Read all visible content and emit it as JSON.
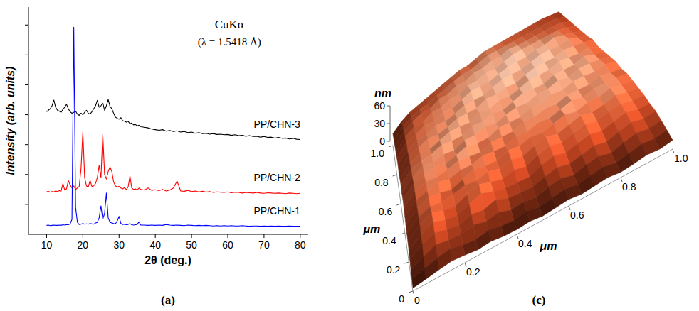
{
  "chart_data": [
    {
      "type": "line",
      "panel": "(a)",
      "x_label": "2θ (deg.)",
      "y_label": "Intensity (arb. units)",
      "annotations": [
        "CuKα",
        "(λ = 1.5418 Å)"
      ],
      "x": [
        10,
        10.5,
        11,
        11.5,
        12,
        12.5,
        13,
        13.5,
        14,
        14.5,
        15,
        15.5,
        16,
        16.5,
        17,
        17.5,
        18,
        18.5,
        19,
        19.5,
        20,
        20.5,
        21,
        21.5,
        22,
        22.5,
        23,
        23.5,
        24,
        24.5,
        25,
        25.5,
        26,
        26.5,
        27,
        27.5,
        28,
        28.5,
        29,
        29.5,
        30,
        30.5,
        31,
        31.5,
        32,
        32.5,
        33,
        33.5,
        34,
        34.5,
        35,
        35.5,
        36,
        37,
        38,
        39,
        40,
        41,
        42,
        43,
        44,
        45,
        46,
        47,
        48,
        49,
        50,
        51,
        52,
        53,
        54,
        55,
        56,
        57,
        58,
        59,
        60,
        61,
        62,
        63,
        64,
        65,
        66,
        67,
        68,
        69,
        70,
        71,
        72,
        73,
        74,
        75,
        76,
        77,
        78,
        79,
        80
      ],
      "series": [
        {
          "name": "PP/CHN-3",
          "color": "#000000",
          "values": [
            4.1,
            4.15,
            4.2,
            4.3,
            4.49,
            4.25,
            4.15,
            4.12,
            4.08,
            4.18,
            4.25,
            4.35,
            4.2,
            4.1,
            4.05,
            4.08,
            4.12,
            4.02,
            3.98,
            4.05,
            4.0,
            4.08,
            4.15,
            4.05,
            4.02,
            4.1,
            4.2,
            4.3,
            4.48,
            4.25,
            4.3,
            4.4,
            4.15,
            4.3,
            4.51,
            4.28,
            4.2,
            4.05,
            3.92,
            3.88,
            3.85,
            3.9,
            3.8,
            3.78,
            3.75,
            3.78,
            3.7,
            3.72,
            3.66,
            3.68,
            3.62,
            3.65,
            3.6,
            3.58,
            3.56,
            3.52,
            3.5,
            3.48,
            3.5,
            3.45,
            3.47,
            3.44,
            3.46,
            3.42,
            3.44,
            3.4,
            3.42,
            3.38,
            3.4,
            3.37,
            3.38,
            3.35,
            3.37,
            3.34,
            3.35,
            3.33,
            3.34,
            3.31,
            3.33,
            3.3,
            3.31,
            3.28,
            3.3,
            3.27,
            3.28,
            3.25,
            3.27,
            3.24,
            3.25,
            3.22,
            3.24,
            3.21,
            3.22,
            3.19,
            3.21,
            3.18,
            3.17
          ]
        },
        {
          "name": "PP/CHN-2",
          "color": "#ff0000",
          "values": [
            1.42,
            1.44,
            1.41,
            1.43,
            1.42,
            1.45,
            1.43,
            1.46,
            1.44,
            1.7,
            1.48,
            1.52,
            1.8,
            1.65,
            1.55,
            1.62,
            1.5,
            1.55,
            1.6,
            2.2,
            3.42,
            1.9,
            1.62,
            1.58,
            1.8,
            1.6,
            1.62,
            1.7,
            1.9,
            2.3,
            1.9,
            3.35,
            2.0,
            1.85,
            2.1,
            2.25,
            2.1,
            1.75,
            1.62,
            1.58,
            1.6,
            1.55,
            1.52,
            1.56,
            1.5,
            1.58,
            1.95,
            1.55,
            1.5,
            1.52,
            1.48,
            1.55,
            1.5,
            1.48,
            1.55,
            1.47,
            1.49,
            1.46,
            1.5,
            1.45,
            1.48,
            1.55,
            1.78,
            1.45,
            1.44,
            1.47,
            1.43,
            1.45,
            1.42,
            1.44,
            1.41,
            1.43,
            1.4,
            1.42,
            1.41,
            1.4,
            1.42,
            1.39,
            1.41,
            1.4,
            1.38,
            1.4,
            1.39,
            1.38,
            1.4,
            1.38,
            1.37,
            1.39,
            1.38,
            1.37,
            1.38,
            1.37,
            1.36,
            1.38,
            1.37,
            1.36,
            1.37
          ]
        },
        {
          "name": "PP/CHN-1",
          "color": "#0000ff",
          "values": [
            0.3,
            0.31,
            0.29,
            0.3,
            0.31,
            0.3,
            0.3,
            0.31,
            0.3,
            0.32,
            0.31,
            0.33,
            0.32,
            0.35,
            0.5,
            6.93,
            0.9,
            0.4,
            0.33,
            0.34,
            0.36,
            0.34,
            0.35,
            0.34,
            0.36,
            0.35,
            0.34,
            0.38,
            0.4,
            0.55,
            0.95,
            0.5,
            0.7,
            1.38,
            0.55,
            0.4,
            0.38,
            0.36,
            0.35,
            0.45,
            0.6,
            0.36,
            0.33,
            0.34,
            0.32,
            0.33,
            0.36,
            0.32,
            0.31,
            0.32,
            0.33,
            0.42,
            0.31,
            0.31,
            0.3,
            0.31,
            0.3,
            0.31,
            0.3,
            0.33,
            0.31,
            0.3,
            0.31,
            0.3,
            0.29,
            0.31,
            0.3,
            0.29,
            0.3,
            0.29,
            0.3,
            0.29,
            0.28,
            0.29,
            0.28,
            0.29,
            0.28,
            0.29,
            0.28,
            0.28,
            0.29,
            0.28,
            0.27,
            0.28,
            0.28,
            0.27,
            0.28,
            0.27,
            0.28,
            0.27,
            0.28,
            0.27,
            0.27,
            0.28,
            0.27,
            0.27,
            0.27
          ]
        }
      ],
      "xlim": [
        5,
        82
      ],
      "xticks": [
        10,
        20,
        30,
        40,
        50,
        60,
        70,
        80
      ],
      "ylim": [
        0,
        7.6
      ],
      "yticks": [
        1,
        2,
        3,
        4,
        5,
        6,
        7
      ],
      "tick_labels": "x"
    },
    {
      "type": "surface",
      "panel": "(c)",
      "x_label": "μm",
      "y_label": "μm",
      "z_label": "nm",
      "x": [
        0,
        0.05,
        0.1,
        0.15,
        0.2,
        0.25,
        0.3,
        0.35,
        0.4,
        0.45,
        0.5,
        0.55,
        0.6,
        0.65,
        0.7,
        0.75,
        0.8,
        0.85,
        0.9,
        0.95,
        1
      ],
      "y": [
        0,
        0.05,
        0.1,
        0.15,
        0.2,
        0.25,
        0.3,
        0.35,
        0.4,
        0.45,
        0.5,
        0.55,
        0.6,
        0.65,
        0.7,
        0.75,
        0.8,
        0.85,
        0.9,
        0.95,
        1
      ],
      "z": [
        [
          5,
          8,
          12,
          15,
          13,
          10,
          12,
          9,
          8,
          10,
          7,
          9,
          11,
          8,
          10,
          12,
          9,
          11,
          14,
          12,
          15
        ],
        [
          8,
          14,
          20,
          24,
          18,
          15,
          19,
          14,
          12,
          16,
          11,
          14,
          17,
          13,
          16,
          19,
          14,
          18,
          22,
          19,
          22
        ],
        [
          12,
          22,
          30,
          26,
          24,
          28,
          22,
          26,
          18,
          20,
          16,
          22,
          24,
          18,
          24,
          26,
          20,
          26,
          30,
          26,
          28
        ],
        [
          16,
          30,
          38,
          32,
          28,
          34,
          30,
          36,
          26,
          24,
          22,
          28,
          32,
          26,
          30,
          34,
          28,
          34,
          38,
          32,
          34
        ],
        [
          20,
          34,
          44,
          36,
          32,
          40,
          46,
          38,
          32,
          30,
          28,
          36,
          40,
          34,
          38,
          42,
          36,
          40,
          44,
          38,
          36
        ],
        [
          22,
          38,
          48,
          40,
          36,
          44,
          50,
          42,
          36,
          40,
          34,
          42,
          46,
          40,
          44,
          48,
          42,
          46,
          48,
          42,
          40
        ],
        [
          24,
          40,
          46,
          42,
          44,
          48,
          44,
          48,
          42,
          46,
          40,
          46,
          50,
          44,
          48,
          52,
          46,
          48,
          52,
          46,
          42
        ],
        [
          26,
          42,
          50,
          46,
          40,
          46,
          52,
          46,
          44,
          50,
          46,
          50,
          46,
          50,
          54,
          48,
          52,
          50,
          54,
          48,
          44
        ],
        [
          28,
          44,
          48,
          52,
          46,
          50,
          48,
          52,
          48,
          46,
          52,
          48,
          52,
          48,
          52,
          56,
          50,
          54,
          52,
          50,
          46
        ],
        [
          30,
          46,
          52,
          48,
          50,
          54,
          50,
          46,
          52,
          50,
          48,
          54,
          50,
          54,
          50,
          54,
          52,
          50,
          54,
          48,
          44
        ],
        [
          32,
          48,
          50,
          54,
          48,
          52,
          56,
          50,
          48,
          54,
          52,
          50,
          56,
          52,
          56,
          52,
          56,
          54,
          50,
          52,
          46
        ],
        [
          30,
          46,
          54,
          50,
          52,
          48,
          54,
          52,
          56,
          50,
          54,
          56,
          52,
          56,
          54,
          58,
          52,
          56,
          54,
          50,
          44
        ],
        [
          32,
          48,
          50,
          52,
          56,
          52,
          50,
          56,
          52,
          56,
          50,
          54,
          58,
          54,
          52,
          56,
          54,
          52,
          56,
          48,
          42
        ],
        [
          30,
          44,
          52,
          48,
          52,
          56,
          54,
          50,
          56,
          52,
          56,
          52,
          54,
          58,
          56,
          54,
          58,
          54,
          50,
          50,
          40
        ],
        [
          28,
          46,
          48,
          54,
          50,
          52,
          56,
          54,
          52,
          58,
          54,
          56,
          52,
          56,
          58,
          56,
          54,
          56,
          52,
          48,
          42
        ],
        [
          30,
          42,
          50,
          48,
          54,
          50,
          52,
          56,
          54,
          52,
          56,
          58,
          56,
          54,
          56,
          58,
          56,
          52,
          54,
          46,
          38
        ],
        [
          28,
          44,
          46,
          52,
          48,
          54,
          50,
          54,
          58,
          56,
          54,
          56,
          58,
          56,
          54,
          56,
          54,
          56,
          50,
          44,
          36
        ],
        [
          26,
          40,
          48,
          46,
          52,
          50,
          54,
          52,
          56,
          54,
          58,
          54,
          56,
          58,
          56,
          54,
          52,
          50,
          48,
          42,
          34
        ],
        [
          24,
          38,
          44,
          48,
          46,
          52,
          50,
          54,
          52,
          56,
          54,
          56,
          54,
          56,
          52,
          50,
          48,
          46,
          44,
          40,
          32
        ],
        [
          22,
          34,
          40,
          42,
          44,
          46,
          48,
          50,
          52,
          50,
          52,
          54,
          52,
          50,
          48,
          46,
          44,
          42,
          40,
          36,
          30
        ],
        [
          20,
          30,
          36,
          38,
          40,
          42,
          44,
          46,
          48,
          46,
          48,
          50,
          48,
          46,
          44,
          42,
          40,
          38,
          36,
          32,
          28
        ]
      ],
      "xlim": [
        0,
        1
      ],
      "xticks": [
        0,
        0.2,
        0.4,
        0.6,
        0.8,
        {
          "value": 1,
          "label": "1.0"
        }
      ],
      "ylim": [
        0,
        1
      ],
      "yticks": [
        0,
        0.2,
        0.4,
        0.6,
        0.8,
        {
          "value": 1,
          "label": "1.0"
        }
      ],
      "zlim": [
        0,
        60
      ],
      "zticks": [
        0,
        30,
        60
      ]
    }
  ]
}
